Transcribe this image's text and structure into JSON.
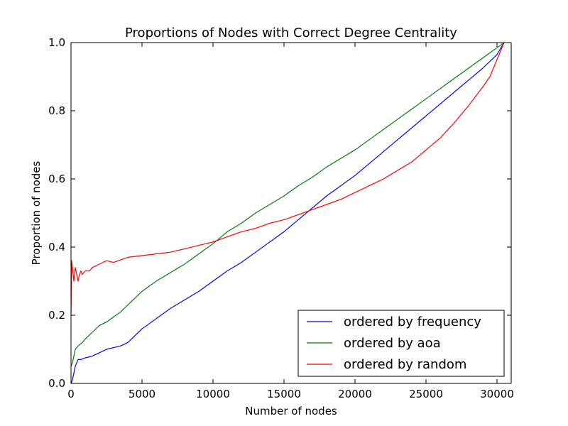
{
  "chart_data": {
    "type": "line",
    "title": "Proportions of Nodes with Correct Degree Centrality",
    "xlabel": "Number of nodes",
    "ylabel": "Proportion of nodes",
    "xlim": [
      0,
      31000
    ],
    "ylim": [
      0.0,
      1.0
    ],
    "xticks": [
      0,
      5000,
      10000,
      15000,
      20000,
      25000,
      30000
    ],
    "xtick_labels": [
      "0",
      "5000",
      "10000",
      "15000",
      "20000",
      "25000",
      "30000"
    ],
    "yticks": [
      0.0,
      0.2,
      0.4,
      0.6,
      0.8,
      1.0
    ],
    "ytick_labels": [
      "0.0",
      "0.2",
      "0.4",
      "0.6",
      "0.8",
      "1.0"
    ],
    "grid": false,
    "legend_position": "lower-right",
    "series": [
      {
        "name": "ordered by frequency",
        "color": "#0000ff",
        "x": [
          0,
          100,
          200,
          300,
          400,
          500,
          700,
          1000,
          1500,
          2000,
          2500,
          3000,
          3500,
          4000,
          5000,
          6000,
          7000,
          8000,
          9000,
          10000,
          11000,
          12000,
          13000,
          14000,
          15000,
          16000,
          17000,
          18000,
          19000,
          20000,
          21000,
          22000,
          23000,
          24000,
          25000,
          26000,
          27000,
          28000,
          29000,
          30000,
          30500
        ],
        "y": [
          0.0,
          0.01,
          0.03,
          0.05,
          0.06,
          0.07,
          0.07,
          0.075,
          0.08,
          0.09,
          0.1,
          0.105,
          0.11,
          0.12,
          0.16,
          0.19,
          0.22,
          0.245,
          0.27,
          0.3,
          0.33,
          0.355,
          0.385,
          0.415,
          0.445,
          0.48,
          0.515,
          0.55,
          0.58,
          0.61,
          0.645,
          0.68,
          0.715,
          0.75,
          0.785,
          0.82,
          0.855,
          0.89,
          0.925,
          0.965,
          1.0
        ]
      },
      {
        "name": "ordered by aoa",
        "color": "#008000",
        "x": [
          0,
          100,
          200,
          300,
          500,
          800,
          1000,
          1500,
          2000,
          2500,
          3000,
          3500,
          4000,
          5000,
          6000,
          7000,
          8000,
          9000,
          10000,
          11000,
          12000,
          13000,
          14000,
          15000,
          16000,
          17000,
          18000,
          19000,
          20000,
          21000,
          22000,
          23000,
          24000,
          25000,
          26000,
          27000,
          28000,
          29000,
          30000,
          30500
        ],
        "y": [
          0.05,
          0.06,
          0.08,
          0.1,
          0.11,
          0.12,
          0.13,
          0.15,
          0.17,
          0.18,
          0.195,
          0.21,
          0.23,
          0.27,
          0.3,
          0.325,
          0.35,
          0.38,
          0.41,
          0.445,
          0.47,
          0.5,
          0.525,
          0.55,
          0.58,
          0.605,
          0.635,
          0.66,
          0.685,
          0.715,
          0.745,
          0.775,
          0.805,
          0.835,
          0.865,
          0.895,
          0.925,
          0.955,
          0.985,
          1.0
        ]
      },
      {
        "name": "ordered by random",
        "color": "#ff0000",
        "x": [
          0,
          50,
          100,
          200,
          300,
          400,
          500,
          600,
          700,
          800,
          1000,
          1300,
          1500,
          2000,
          2500,
          3000,
          4000,
          5000,
          6000,
          7000,
          8000,
          9000,
          10000,
          11000,
          12000,
          13000,
          14000,
          15000,
          16000,
          17000,
          18000,
          19000,
          20000,
          21000,
          22000,
          23000,
          24000,
          25000,
          26000,
          27000,
          28000,
          29000,
          29500,
          30000,
          30500
        ],
        "y": [
          0.2,
          0.36,
          0.34,
          0.3,
          0.34,
          0.32,
          0.3,
          0.32,
          0.33,
          0.32,
          0.33,
          0.33,
          0.34,
          0.35,
          0.36,
          0.355,
          0.37,
          0.375,
          0.38,
          0.385,
          0.395,
          0.405,
          0.415,
          0.43,
          0.445,
          0.455,
          0.47,
          0.48,
          0.495,
          0.51,
          0.525,
          0.54,
          0.56,
          0.58,
          0.6,
          0.625,
          0.65,
          0.685,
          0.72,
          0.765,
          0.815,
          0.87,
          0.9,
          0.95,
          1.0
        ]
      }
    ]
  }
}
